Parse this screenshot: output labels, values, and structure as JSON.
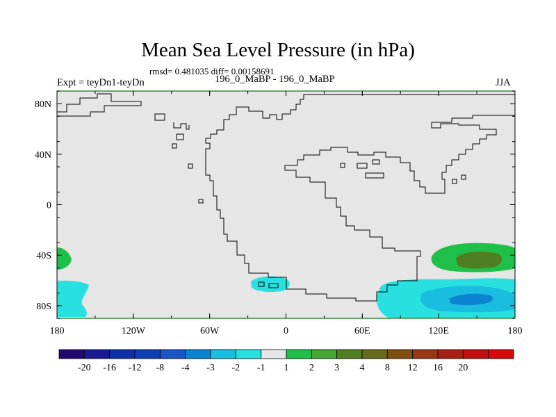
{
  "title": "Mean Sea Level Pressure (in hPa)",
  "stats": "rmsd= 0.481035 diff= 0.00158691",
  "left_label": "Expt = teyDn1-teyDn",
  "center_label": "196_0_MaBP - 196_0_MaBP",
  "right_label": "JJA",
  "colors": {
    "background_band": "#e6e6e6",
    "coastline": "#000000",
    "frame_accent": "#3a8a3a"
  },
  "axes": {
    "lat_labels": [
      "80N",
      "40N",
      "0",
      "40S",
      "80S"
    ],
    "lon_labels": [
      "180",
      "120W",
      "60W",
      "0",
      "60E",
      "120E",
      "180"
    ]
  },
  "colorbar": {
    "boxes": [
      "#200a70",
      "#1a1a96",
      "#0f2fa8",
      "#103cb4",
      "#1a55c8",
      "#0a84d0",
      "#18bde0",
      "#28e0e0",
      "#e6e6e6",
      "#1fc04a",
      "#44a630",
      "#4f7f20",
      "#66681a",
      "#7f4f10",
      "#963816",
      "#a82014",
      "#c00f0f",
      "#d80808"
    ],
    "labels": [
      "-20",
      "-16",
      "-12",
      "-8",
      "-4",
      "-3",
      "-2",
      "-1",
      "1",
      "2",
      "3",
      "4",
      "8",
      "12",
      "16",
      "20"
    ]
  },
  "map_data": {
    "type": "contour",
    "lon_range": [
      -180,
      180
    ],
    "lat_range": [
      -90,
      90
    ],
    "anomalies": [
      {
        "region": "southern Indian–Pacific ocean",
        "lon": [
          120,
          175
        ],
        "lat": [
          -88,
          -63
        ],
        "levels": [
          "-2",
          "-3",
          "-4"
        ],
        "sign": "negative"
      },
      {
        "region": "south of South Atlantic",
        "lon": [
          -28,
          8
        ],
        "lat": [
          -70,
          -63
        ],
        "levels": [
          "-1"
        ],
        "sign": "negative"
      },
      {
        "region": "far west Pacific (dateline)",
        "lon": [
          -180,
          -158
        ],
        "lat": [
          -88,
          -66
        ],
        "levels": [
          "-1"
        ],
        "sign": "negative"
      },
      {
        "region": "southern high pressure belt east",
        "lon": [
          115,
          180
        ],
        "lat": [
          -58,
          -28
        ],
        "levels": [
          "1",
          "3"
        ],
        "sign": "positive"
      },
      {
        "region": "dateline west edge",
        "lon": [
          -180,
          -170
        ],
        "lat": [
          -50,
          -33
        ],
        "levels": [
          "1"
        ],
        "sign": "positive"
      }
    ]
  }
}
